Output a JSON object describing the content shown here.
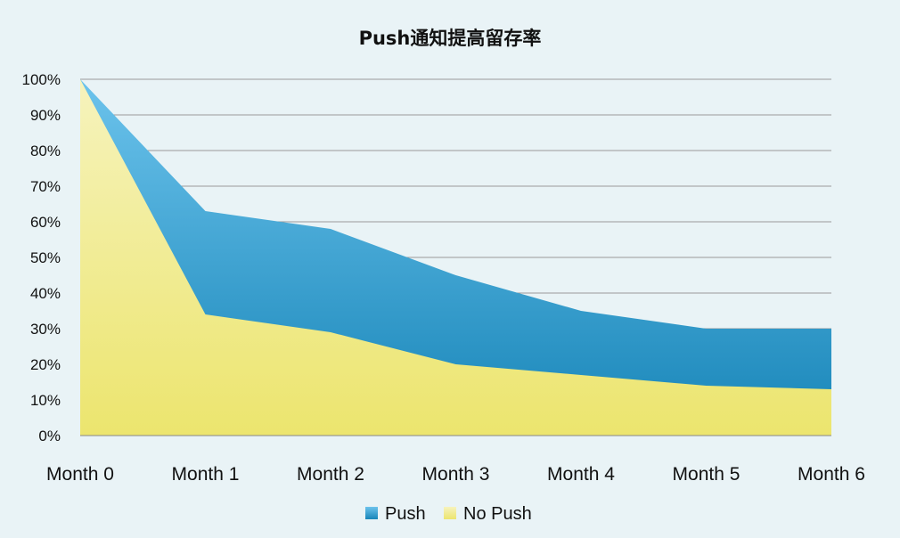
{
  "chart_data": {
    "type": "area",
    "title": "Push通知提高留存率",
    "xlabel": "",
    "ylabel": "",
    "categories": [
      "Month 0",
      "Month 1",
      "Month 2",
      "Month 3",
      "Month 4",
      "Month 5",
      "Month 6"
    ],
    "series": [
      {
        "name": "Push",
        "values": [
          100,
          63,
          58,
          45,
          35,
          30,
          30
        ],
        "color": "#2e93c8"
      },
      {
        "name": "No Push",
        "values": [
          100,
          34,
          29,
          20,
          17,
          14,
          13
        ],
        "color": "#efe983"
      }
    ],
    "ylim": [
      0,
      100
    ],
    "yticks": [
      "0%",
      "10%",
      "20%",
      "30%",
      "40%",
      "50%",
      "60%",
      "70%",
      "80%",
      "90%",
      "100%"
    ],
    "grid": true,
    "legend_position": "bottom",
    "colors": {
      "background": "#e9f3f6",
      "grid": "#9a9a9a"
    }
  }
}
